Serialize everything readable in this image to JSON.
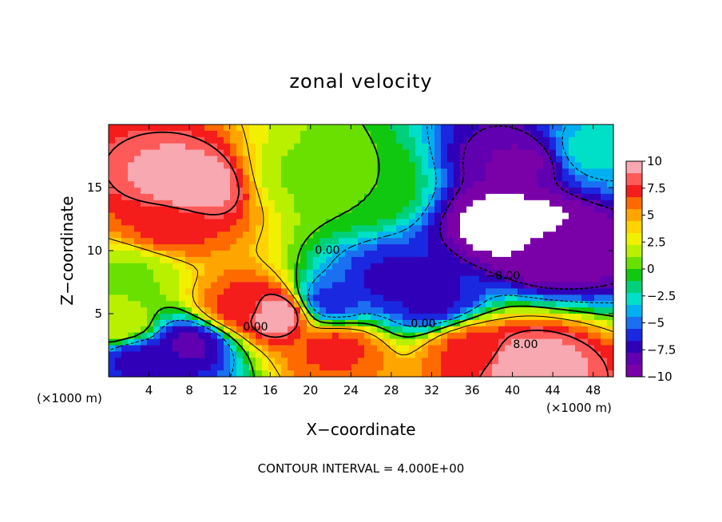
{
  "chart_data": {
    "type": "heatmap",
    "title": "zonal velocity",
    "xlabel": "X−coordinate",
    "ylabel": "Z−coordinate",
    "x_unit_label": "(×1000 m)",
    "x_ticks": [
      "4",
      "8",
      "12",
      "16",
      "20",
      "24",
      "28",
      "32",
      "36",
      "40",
      "44",
      "48"
    ],
    "y_ticks": [
      "5",
      "10",
      "15"
    ],
    "xlim": [
      0,
      50
    ],
    "ylim": [
      0,
      20
    ],
    "colorbar": {
      "ticks": [
        "10",
        "7.5",
        "5",
        "2.5",
        "0",
        "−2.5",
        "−5",
        "−7.5",
        "−10"
      ],
      "range": [
        -10,
        10
      ],
      "colors": [
        "#f7a8b0",
        "#ff5a5a",
        "#f51c1c",
        "#ff6a00",
        "#ffa500",
        "#ffd200",
        "#f0f000",
        "#b8f000",
        "#6ae000",
        "#10c810",
        "#00d07a",
        "#00e0c8",
        "#00b0f0",
        "#1a70f0",
        "#1a28e0",
        "#3000b8",
        "#6000b0",
        "#7a00a8"
      ]
    },
    "contour_labels": [
      "0.00",
      "0.00",
      "0.00",
      "−8.00",
      "8.00"
    ],
    "contour_interval": "4.000E+00",
    "features": [
      {
        "x": 8,
        "z": 15,
        "u": 10
      },
      {
        "x": 6,
        "z": 12,
        "u": 7
      },
      {
        "x": 16.5,
        "z": 5,
        "u": 10
      },
      {
        "x": 13,
        "z": 5.5,
        "u": 7
      },
      {
        "x": 41,
        "z": 1.2,
        "u": 10
      },
      {
        "x": 36,
        "z": 2.2,
        "u": 7
      },
      {
        "x": 22.5,
        "z": 2.3,
        "u": 7
      },
      {
        "x": 20,
        "z": 16,
        "u": 1
      },
      {
        "x": 25,
        "z": 15,
        "u": 0
      },
      {
        "x": 40,
        "z": 12,
        "u": -12
      },
      {
        "x": 44,
        "z": 10,
        "u": -10
      },
      {
        "x": 41,
        "z": 17,
        "u": -9
      },
      {
        "x": 28,
        "z": 7.5,
        "u": -7
      },
      {
        "x": 32,
        "z": 6,
        "u": -7
      },
      {
        "x": 22,
        "z": 6,
        "u": -6
      },
      {
        "x": 8,
        "z": 2.5,
        "u": -8
      },
      {
        "x": 3,
        "z": 1.5,
        "u": -7
      },
      {
        "x": 48,
        "z": 18,
        "u": -3
      },
      {
        "x": 2,
        "z": 8,
        "u": 1
      },
      {
        "x": 1,
        "z": 4,
        "u": 2
      }
    ]
  },
  "footnote": "CONTOUR INTERVAL = 4.000E+00"
}
